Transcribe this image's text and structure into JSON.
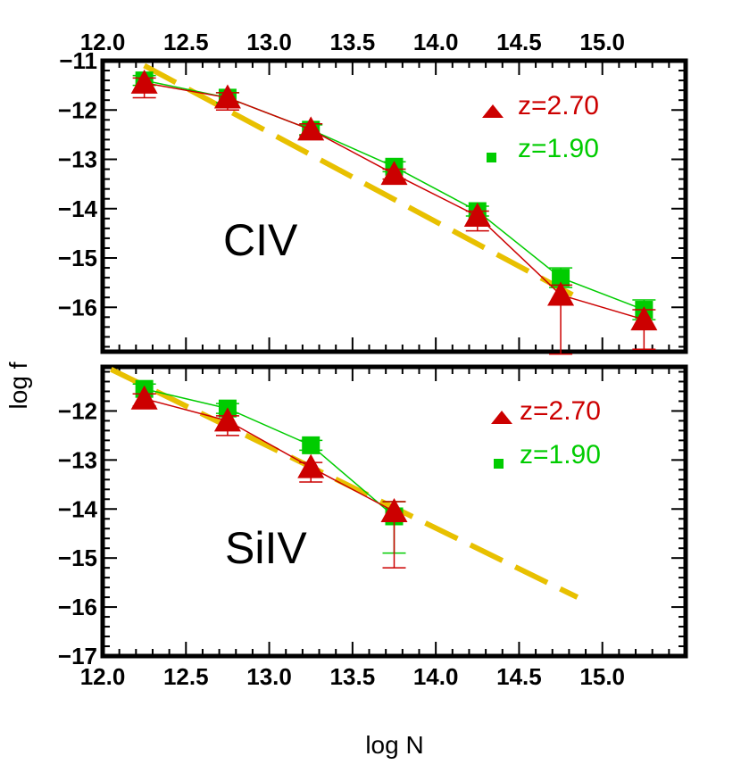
{
  "chart_data": [
    {
      "type": "scatter",
      "panel_label": "CIV",
      "xlabel": "log N",
      "ylabel": "log f",
      "xlim": [
        12.0,
        15.5
      ],
      "ylim": [
        -16.9,
        -11.0
      ],
      "x_ticks": [
        12.0,
        12.5,
        13.0,
        13.5,
        14.0,
        14.5,
        15.0
      ],
      "x_tick_labels": [
        "12.0",
        "12.5",
        "13.0",
        "13.5",
        "14.0",
        "14.5",
        "15.0"
      ],
      "y_ticks": [
        -11,
        -12,
        -13,
        -14,
        -15,
        -16
      ],
      "y_tick_labels": [
        "−11",
        "−12",
        "−13",
        "−14",
        "−15",
        "−16"
      ],
      "legend_position": "top-right",
      "series": [
        {
          "name": "z=2.70",
          "marker": "triangle",
          "color": "#cc0000",
          "x": [
            12.25,
            12.75,
            13.25,
            13.75,
            14.25,
            14.75,
            15.25
          ],
          "y": [
            -11.45,
            -11.75,
            -12.4,
            -13.3,
            -14.15,
            -15.75,
            -16.25
          ],
          "err_low": [
            0.3,
            0.25,
            0.12,
            0.1,
            0.3,
            1.2,
            0.6
          ],
          "err_high": [
            0.1,
            0.1,
            0.12,
            0.1,
            0.1,
            0.2,
            0.2
          ]
        },
        {
          "name": "z=1.90",
          "marker": "square",
          "color": "#00cc00",
          "x": [
            12.25,
            12.75,
            13.25,
            13.75,
            14.25,
            14.75,
            15.25
          ],
          "y": [
            -11.4,
            -11.75,
            -12.4,
            -13.15,
            -14.05,
            -15.4,
            -16.05
          ],
          "err_low": [
            0.1,
            0.1,
            0.1,
            0.1,
            0.1,
            0.2,
            0.2
          ],
          "err_high": [
            0.1,
            0.1,
            0.1,
            0.1,
            0.1,
            0.2,
            0.2
          ]
        }
      ],
      "fit_line": {
        "color": "#e8c000",
        "x": [
          12.25,
          14.85
        ],
        "y": [
          -11.1,
          -15.8
        ]
      }
    },
    {
      "type": "scatter",
      "panel_label": "SiIV",
      "xlabel": "log N",
      "ylabel": "log f",
      "xlim": [
        12.0,
        15.5
      ],
      "ylim": [
        -17.0,
        -11.1
      ],
      "x_ticks": [
        12.0,
        12.5,
        13.0,
        13.5,
        14.0,
        14.5,
        15.0
      ],
      "x_tick_labels": [
        "12.0",
        "12.5",
        "13.0",
        "13.5",
        "14.0",
        "14.5",
        "15.0"
      ],
      "y_ticks": [
        -12,
        -13,
        -14,
        -15,
        -16,
        -17
      ],
      "y_tick_labels": [
        "−12",
        "−13",
        "−14",
        "−15",
        "−16",
        "−17"
      ],
      "legend_position": "top-right",
      "series": [
        {
          "name": "z=2.70",
          "marker": "triangle",
          "color": "#cc0000",
          "x": [
            12.25,
            12.75,
            13.25,
            13.75
          ],
          "y": [
            -11.75,
            -12.2,
            -13.15,
            -14.05
          ],
          "err_low": [
            0.15,
            0.3,
            0.3,
            1.15
          ],
          "err_high": [
            0.1,
            0.1,
            0.1,
            0.2
          ]
        },
        {
          "name": "z=1.90",
          "marker": "square",
          "color": "#00cc00",
          "x": [
            12.25,
            12.75,
            13.25,
            13.75
          ],
          "y": [
            -11.55,
            -11.95,
            -12.7,
            -14.15
          ],
          "err_low": [
            0.1,
            0.1,
            0.1,
            0.75
          ],
          "err_high": [
            0.1,
            0.1,
            0.1,
            0.3
          ]
        }
      ],
      "fit_line": {
        "color": "#e8c000",
        "x": [
          12.05,
          14.85
        ],
        "y": [
          -11.15,
          -15.8
        ]
      }
    }
  ]
}
